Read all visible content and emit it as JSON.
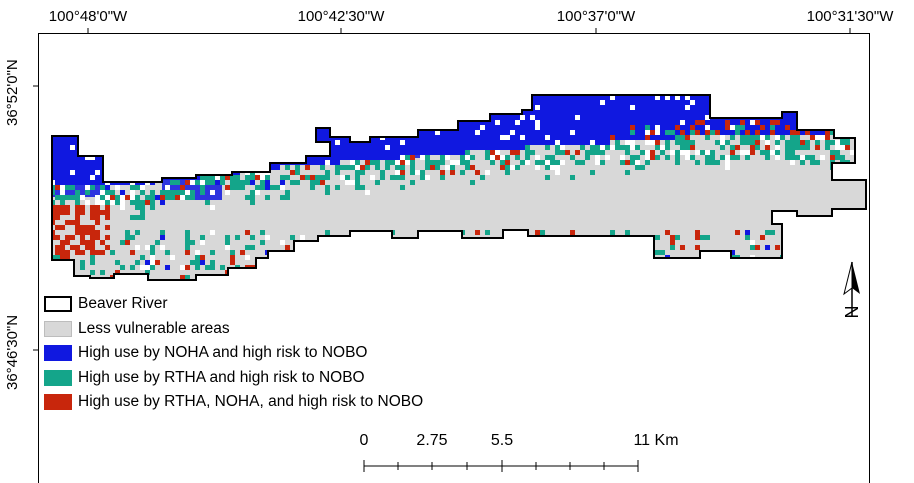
{
  "coordinates": {
    "longitudes": [
      "100°48'0\"W",
      "100°42'30\"W",
      "100°37'0\"W",
      "100°31'30\"W"
    ],
    "latitudes": [
      "36°52'0\"N",
      "36°46'30\"N"
    ]
  },
  "legend": [
    {
      "label": "Beaver River",
      "fill": "#ffffff",
      "stroke": "#000000"
    },
    {
      "label": "Less vulnerable areas",
      "fill": "#d8d8d8",
      "stroke": "#d8d8d8"
    },
    {
      "label": "High use by NOHA and high risk to NOBO",
      "fill": "#1018e0",
      "stroke": "#1018e0"
    },
    {
      "label": "High use by RTHA and high risk to NOBO",
      "fill": "#14a58a",
      "stroke": "#14a58a"
    },
    {
      "label": "High use by RTHA, NOHA, and high risk to NOBO",
      "fill": "#c8260c",
      "stroke": "#c8260c"
    }
  ],
  "scale": {
    "labels": [
      "0",
      "2.75",
      "5.5",
      "11 Km"
    ]
  },
  "north_arrow": {
    "label": "N"
  },
  "colors": {
    "background": "#d8d8d8",
    "noha": "#1018e0",
    "rtha": "#14a58a",
    "both": "#c8260c"
  }
}
